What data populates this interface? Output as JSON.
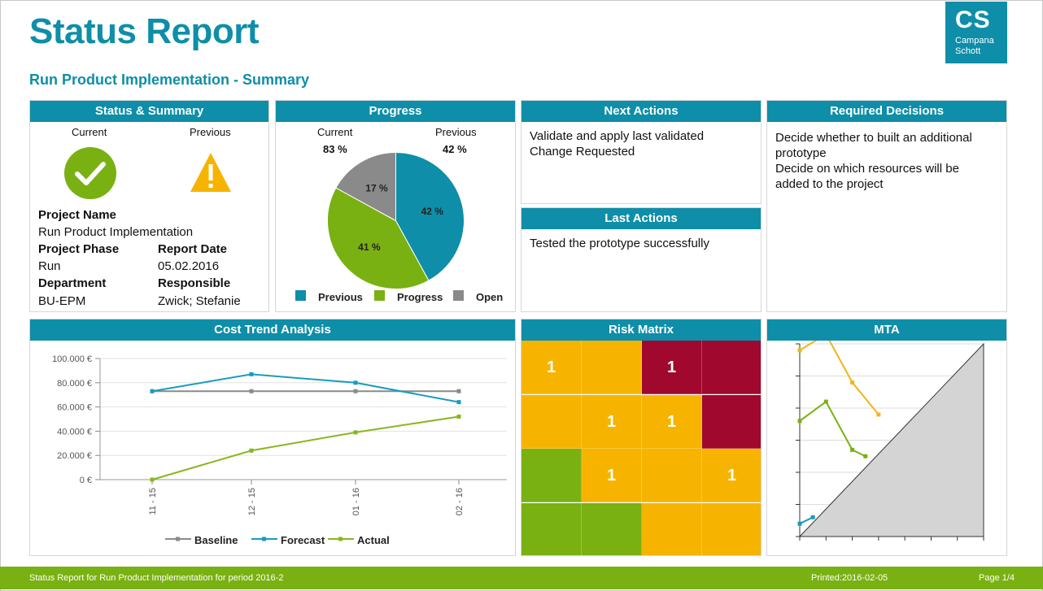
{
  "header": {
    "title": "Status Report",
    "subtitle": "Run Product Implementation - Summary",
    "logo": {
      "abbr": "CS",
      "name_line1": "Campana",
      "name_line2": "Schott"
    }
  },
  "status_summary": {
    "title": "Status & Summary",
    "current_label": "Current",
    "previous_label": "Previous",
    "current_icon": "check-circle-icon",
    "previous_icon": "warning-triangle-icon",
    "project_name_label": "Project Name",
    "project_name": "Run Product Implementation",
    "project_phase_label": "Project Phase",
    "project_phase": "Run",
    "report_date_label": "Report Date",
    "report_date": "05.02.2016",
    "department_label": "Department",
    "department": "BU-EPM",
    "responsible_label": "Responsible",
    "responsible": "Zwick; Stefanie"
  },
  "progress": {
    "title": "Progress",
    "current_label": "Current",
    "previous_label": "Previous",
    "current_value": "83 %",
    "previous_value": "42 %",
    "slices": [
      {
        "label": "Previous",
        "value": 42,
        "text": "42 %",
        "color": "#0e8ea8"
      },
      {
        "label": "Progress",
        "value": 41,
        "text": "41 %",
        "color": "#79b112"
      },
      {
        "label": "Open",
        "value": 17,
        "text": "17 %",
        "color": "#8a8a8a"
      }
    ],
    "legend": [
      "Previous",
      "Progress",
      "Open"
    ]
  },
  "next_actions": {
    "title": "Next Actions",
    "text": "Validate and apply last validated Change Requested"
  },
  "last_actions": {
    "title": "Last Actions",
    "text": "Tested the prototype successfully"
  },
  "required_decisions": {
    "title": "Required Decisions",
    "line1": "Decide whether to built an additional prototype",
    "line2": "Decide on which resources will be added to the project"
  },
  "cost_trend": {
    "title": "Cost Trend Analysis",
    "chart_data": {
      "type": "line",
      "categories": [
        "11 - 15",
        "12 - 15",
        "01 - 16",
        "02 - 16"
      ],
      "ylim": [
        0,
        100000
      ],
      "yticks": [
        "0 €",
        "20.000 €",
        "40.000 €",
        "60.000 €",
        "80.000 €",
        "100.000 €"
      ],
      "grid": true,
      "legend_position": "bottom",
      "series": [
        {
          "name": "Baseline",
          "color": "#8a8a8a",
          "values": [
            73000,
            73000,
            73000,
            73000
          ]
        },
        {
          "name": "Forecast",
          "color": "#1a9bbf",
          "values": [
            73000,
            87000,
            80000,
            64000
          ]
        },
        {
          "name": "Actual",
          "color": "#86b81e",
          "values": [
            0,
            24000,
            39000,
            52000
          ]
        }
      ]
    }
  },
  "risk_matrix": {
    "title": "Risk Matrix",
    "colors": {
      "red": "#a0082e",
      "orange": "#f6b400",
      "green": "#79b112"
    },
    "rows": [
      [
        {
          "c": "orange",
          "v": "1"
        },
        {
          "c": "orange",
          "v": ""
        },
        {
          "c": "red",
          "v": "1"
        },
        {
          "c": "red",
          "v": ""
        }
      ],
      [
        {
          "c": "orange",
          "v": ""
        },
        {
          "c": "orange",
          "v": "1"
        },
        {
          "c": "orange",
          "v": "1"
        },
        {
          "c": "red",
          "v": ""
        }
      ],
      [
        {
          "c": "green",
          "v": ""
        },
        {
          "c": "orange",
          "v": "1"
        },
        {
          "c": "orange",
          "v": ""
        },
        {
          "c": "orange",
          "v": "1"
        }
      ],
      [
        {
          "c": "green",
          "v": ""
        },
        {
          "c": "green",
          "v": ""
        },
        {
          "c": "orange",
          "v": ""
        },
        {
          "c": "orange",
          "v": ""
        }
      ]
    ]
  },
  "mta": {
    "title": "MTA",
    "chart_data": {
      "type": "line",
      "x_steps": 7,
      "y_steps": 6,
      "series": [
        {
          "color": "#f1b51c",
          "points": [
            [
              0,
              5.8
            ],
            [
              1,
              6.3
            ],
            [
              2,
              4.8
            ],
            [
              3,
              3.8
            ]
          ]
        },
        {
          "color": "#79b112",
          "points": [
            [
              0,
              3.6
            ],
            [
              1,
              4.2
            ],
            [
              2,
              2.7
            ],
            [
              2.5,
              2.5
            ]
          ]
        },
        {
          "color": "#1a9bbf",
          "points": [
            [
              0,
              0.4
            ],
            [
              0.5,
              0.6
            ]
          ]
        }
      ]
    }
  },
  "footer": {
    "left": "Status Report for Run Product Implementation for period 2016-2",
    "printed": "Printed:2016-02-05",
    "page": "Page 1/4"
  }
}
